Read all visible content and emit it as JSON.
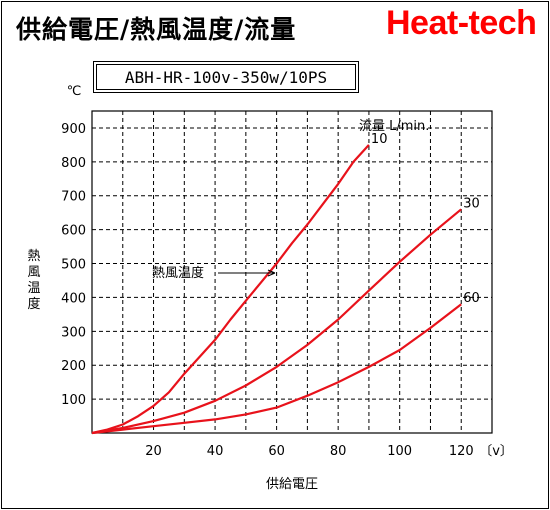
{
  "header": {
    "title": "供給電圧/熱風温度/流量",
    "brand": "Heat-tech",
    "model": "ABH-HR-100v-350w/10PS"
  },
  "chart_data": {
    "type": "line",
    "xlabel": "供給電圧",
    "x_unit": "〔v〕",
    "ylabel": "熱風温度",
    "y_unit": "℃",
    "xlim": [
      0,
      130
    ],
    "ylim": [
      0,
      950
    ],
    "x_ticks": [
      20,
      40,
      60,
      80,
      100,
      120
    ],
    "y_ticks": [
      100,
      200,
      300,
      400,
      500,
      600,
      700,
      800,
      900
    ],
    "grid": true,
    "legend_title": "流量 L/min.",
    "annotation": "熱風温度",
    "line_color": "#e8121b",
    "series": [
      {
        "name": "10",
        "x": [
          0,
          5,
          10,
          15,
          20,
          25,
          30,
          35,
          40,
          45,
          50,
          55,
          60,
          65,
          70,
          75,
          80,
          85,
          90
        ],
        "y": [
          0,
          10,
          25,
          50,
          80,
          120,
          175,
          225,
          275,
          335,
          390,
          445,
          500,
          560,
          615,
          675,
          735,
          800,
          850
        ]
      },
      {
        "name": "30",
        "x": [
          0,
          10,
          20,
          30,
          40,
          50,
          60,
          70,
          80,
          90,
          100,
          110,
          120
        ],
        "y": [
          0,
          15,
          35,
          60,
          95,
          140,
          195,
          260,
          335,
          420,
          505,
          585,
          660
        ]
      },
      {
        "name": "60",
        "x": [
          0,
          10,
          20,
          30,
          40,
          50,
          60,
          70,
          80,
          90,
          100,
          110,
          120
        ],
        "y": [
          0,
          10,
          20,
          30,
          40,
          55,
          75,
          110,
          150,
          195,
          245,
          310,
          380
        ]
      }
    ]
  }
}
